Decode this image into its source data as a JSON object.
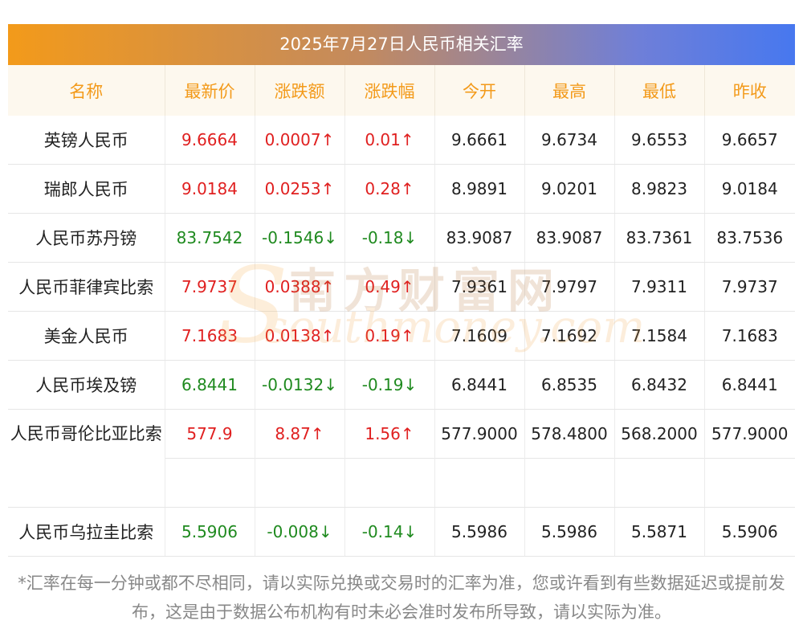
{
  "title": "2025年7月27日人民币相关汇率",
  "columns": [
    "名称",
    "最新价",
    "涨跌额",
    "涨跌幅",
    "今开",
    "最高",
    "最低",
    "昨收"
  ],
  "rows": [
    {
      "name": "英镑人民币",
      "latest": "9.6664",
      "change": "0.0007↑",
      "pct": "0.01↑",
      "open": "9.6661",
      "high": "9.6734",
      "low": "9.6553",
      "prev": "9.6657",
      "dir": "up"
    },
    {
      "name": "瑞郎人民币",
      "latest": "9.0184",
      "change": "0.0253↑",
      "pct": "0.28↑",
      "open": "8.9891",
      "high": "9.0201",
      "low": "8.9823",
      "prev": "9.0184",
      "dir": "up"
    },
    {
      "name": "人民币苏丹镑",
      "latest": "83.7542",
      "change": "-0.1546↓",
      "pct": "-0.18↓",
      "open": "83.9087",
      "high": "83.9087",
      "low": "83.7361",
      "prev": "83.7536",
      "dir": "down"
    },
    {
      "name": "人民币菲律宾比索",
      "latest": "7.9737",
      "change": "0.0388↑",
      "pct": "0.49↑",
      "open": "7.9361",
      "high": "7.9797",
      "low": "7.9311",
      "prev": "7.9737",
      "dir": "up"
    },
    {
      "name": "美金人民币",
      "latest": "7.1683",
      "change": "0.0138↑",
      "pct": "0.19↑",
      "open": "7.1609",
      "high": "7.1692",
      "low": "7.1584",
      "prev": "7.1683",
      "dir": "up"
    },
    {
      "name": "人民币埃及镑",
      "latest": "6.8441",
      "change": "-0.0132↓",
      "pct": "-0.19↓",
      "open": "6.8441",
      "high": "6.8535",
      "low": "6.8432",
      "prev": "6.8441",
      "dir": "down"
    },
    {
      "name": "人民币哥伦比亚比索",
      "latest": "577.9",
      "change": "8.87↑",
      "pct": "1.56↑",
      "open": "577.9000",
      "high": "578.4800",
      "low": "568.2000",
      "prev": "577.9000",
      "dir": "up"
    },
    {
      "name": "人民币乌拉圭比索",
      "latest": "5.5906",
      "change": "-0.008↓",
      "pct": "-0.14↓",
      "open": "5.5986",
      "high": "5.5986",
      "low": "5.5871",
      "prev": "5.5906",
      "dir": "down"
    }
  ],
  "watermark": {
    "cn": "南方财富网",
    "en": "southmoney.com"
  },
  "footnote": "*汇率在每一分钟或都不尽相同，请以实际兑换或交易时的汇率为准，您或许看到有些数据延迟或提前发布，这是由于数据公布机构有时未必会准时发布所导致，请以实际为准。",
  "colors": {
    "up": "#e02020",
    "down": "#1f8a1f",
    "header_text": "#f39a1a",
    "gradient_start": "#f39a1a",
    "gradient_end": "#4778ef"
  }
}
